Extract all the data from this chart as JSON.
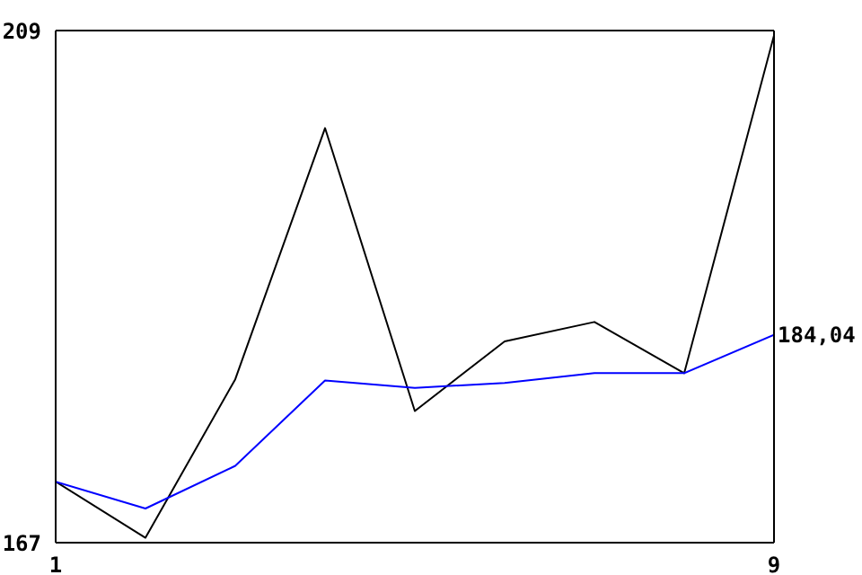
{
  "chart_data": {
    "type": "line",
    "x": [
      1,
      2,
      3,
      4,
      5,
      6,
      7,
      8,
      9
    ],
    "xlim": [
      1,
      9
    ],
    "xticks": [
      1,
      9
    ],
    "ylim": [
      167,
      209
    ],
    "yticks": [
      167,
      209
    ],
    "marker": "none",
    "series": [
      {
        "color": "#000000",
        "values": [
          172,
          167.4,
          180.4,
          201,
          177.8,
          183.5,
          185.1,
          180.9,
          208.6
        ]
      },
      {
        "color": "#0000ff",
        "values": [
          172,
          169.8,
          173.3,
          180.3,
          179.7,
          180.1,
          180.9,
          180.9,
          184.04
        ]
      }
    ],
    "annotations": [
      {
        "text": "184,04",
        "x": 9,
        "y": 184.04
      }
    ]
  }
}
